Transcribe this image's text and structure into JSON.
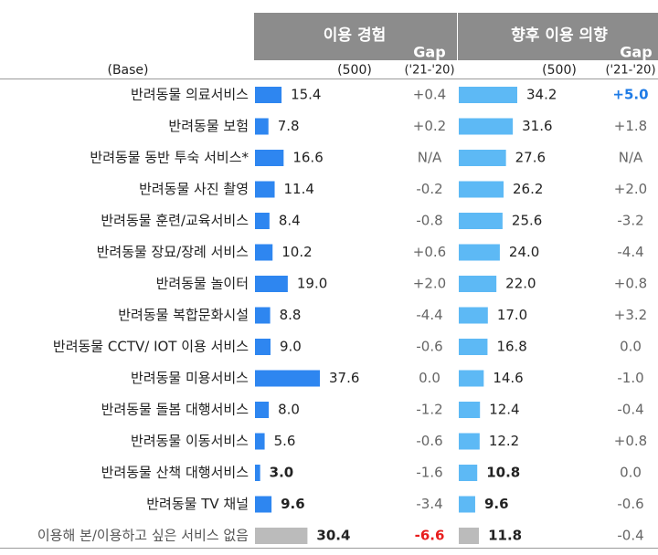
{
  "chart_data": {
    "type": "bar",
    "headers": {
      "usage_title": "이용 경험",
      "intent_title": "향후 이용 의향",
      "gap_label": "Gap",
      "base_label": "(Base)",
      "usage_base": "(500)",
      "intent_base": "(500)",
      "gap_base": "('21-'20)"
    },
    "categories": [
      "반려동물 의료서비스",
      "반려동물 보험",
      "반려동물 동반 투숙 서비스*",
      "반려동물 사진 촬영",
      "반려동물 훈련/교육서비스",
      "반려동물 장묘/장례 서비스",
      "반려동물 놀이터",
      "반려동물 복합문화시설",
      "반려동물 CCTV/ IOT 이용 서비스",
      "반려동물 미용서비스",
      "반려동물 돌봄 대행서비스",
      "반려동물 이동서비스",
      "반려동물 산책 대행서비스",
      "반려동물 TV 채널",
      "이용해 본/이용하고 싶은 서비스 없음"
    ],
    "series": [
      {
        "name": "이용 경험",
        "values": [
          15.4,
          7.8,
          16.6,
          11.4,
          8.4,
          10.2,
          19.0,
          8.8,
          9.0,
          37.6,
          8.0,
          5.6,
          3.0,
          9.6,
          30.4
        ],
        "labels": [
          "15.4",
          "7.8",
          "16.6",
          "11.4",
          "8.4",
          "10.2",
          "19.0",
          "8.8",
          "9.0",
          "37.6",
          "8.0",
          "5.6",
          "3.0",
          "9.6",
          "30.4"
        ],
        "gap": [
          "+0.4",
          "+0.2",
          "N/A",
          "-0.2",
          "-0.8",
          "+0.6",
          "+2.0",
          "-4.4",
          "-0.6",
          "0.0",
          "-1.2",
          "-0.6",
          "-1.6",
          "-3.4",
          "-6.6"
        ]
      },
      {
        "name": "향후 이용 의향",
        "values": [
          34.2,
          31.6,
          27.6,
          26.2,
          25.6,
          24.0,
          22.0,
          17.0,
          16.8,
          14.6,
          12.4,
          12.2,
          10.8,
          9.6,
          11.8
        ],
        "labels": [
          "34.2",
          "31.6",
          "27.6",
          "26.2",
          "25.6",
          "24.0",
          "22.0",
          "17.0",
          "16.8",
          "14.6",
          "12.4",
          "12.2",
          "10.8",
          "9.6",
          "11.8"
        ],
        "gap": [
          "+5.0",
          "+1.8",
          "N/A",
          "+2.0",
          "-3.2",
          "-4.4",
          "+0.8",
          "+3.2",
          "0.0",
          "-1.0",
          "-0.4",
          "+0.8",
          "0.0",
          "-0.6",
          "-0.4"
        ]
      }
    ],
    "colors": {
      "usage_bar": "#2E86F0",
      "intent_bar": "#5DB9F5",
      "none_bar": "#BBBBBB",
      "header_bg": "#8C8C8C",
      "header_text": "#FFFFFF",
      "text": "#222222",
      "gap_text": "#666666",
      "gap_highlight_positive": "#1E7BE6",
      "gap_highlight_negative": "#E81E1E"
    }
  }
}
